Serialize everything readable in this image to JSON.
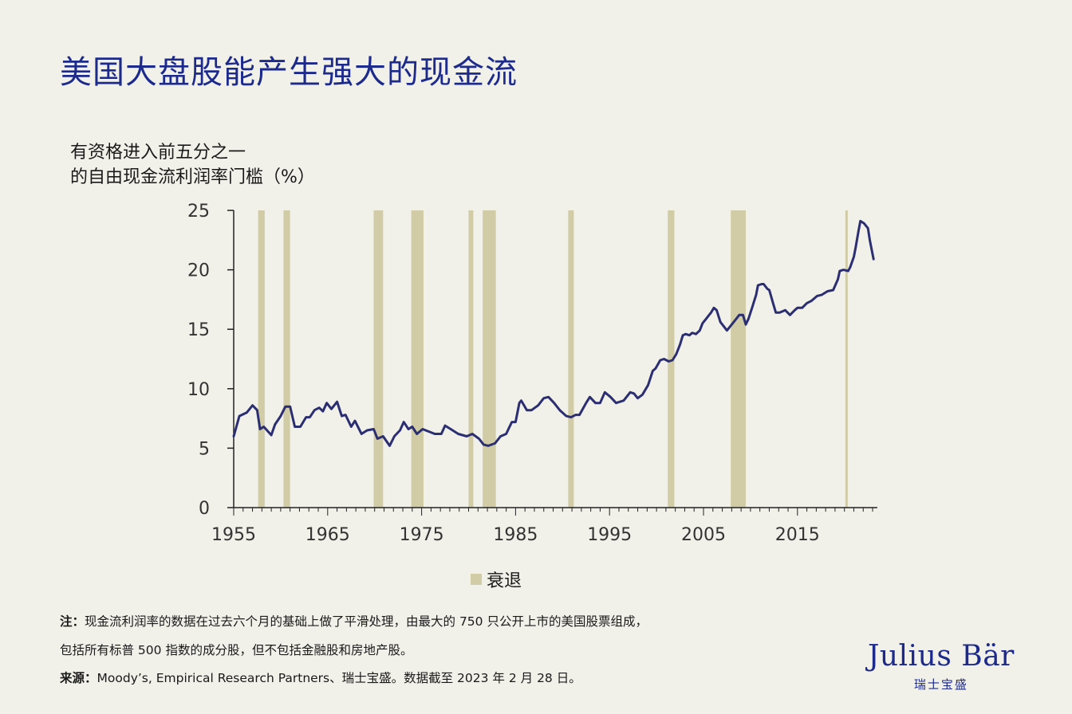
{
  "title": "美国大盘股能产生强大的现金流",
  "notes": {
    "note_label": "注：",
    "note_line1": "现金流利润率的数据在过去六个月的基础上做了平滑处理，由最大的 750 只公开上市的美国股票组成，",
    "note_line2": "包括所有标普 500 指数的成分股，但不包括金融股和房地产股。",
    "source_label": "来源：",
    "source_text": "Moody’s, Empirical Research Partners、瑞士宝盛。数据截至 2023 年 2 月 28 日。"
  },
  "logo": {
    "name": "Julius Bär",
    "sub": "瑞士宝盛"
  },
  "colors": {
    "background": "#f1f0e9",
    "title": "#1c2a8c",
    "line": "#2b2f72",
    "recession": "#d1cca5"
  },
  "chart_data": {
    "type": "line",
    "title": "",
    "ylabel_line1": "有资格进入前五分之一",
    "ylabel_line2": "的自由现金流利润率门槛（%）",
    "xlabel": "",
    "xlim": [
      1955,
      2023.5
    ],
    "ylim": [
      0,
      25
    ],
    "x_ticks": [
      1955,
      1965,
      1975,
      1985,
      1995,
      2005,
      2015
    ],
    "y_ticks": [
      0,
      5,
      10,
      15,
      20,
      25
    ],
    "grid": false,
    "legend": {
      "position": "bottom",
      "entries": [
        "衰退"
      ]
    },
    "recessions": [
      [
        1957.6,
        1958.3
      ],
      [
        1960.3,
        1961.0
      ],
      [
        1969.9,
        1970.9
      ],
      [
        1973.9,
        1975.2
      ],
      [
        1980.0,
        1980.5
      ],
      [
        1981.5,
        1982.9
      ],
      [
        1990.6,
        1991.2
      ],
      [
        2001.2,
        2001.9
      ],
      [
        2007.9,
        2009.5
      ],
      [
        2020.1,
        2020.3
      ]
    ],
    "series": [
      {
        "x": [
          1955.0,
          1955.6,
          1956.4,
          1957.0,
          1957.5,
          1957.8,
          1958.2,
          1959.0,
          1959.4,
          1960.0,
          1960.5,
          1961.0,
          1961.5,
          1962.1,
          1962.7,
          1963.1,
          1963.6,
          1964.1,
          1964.5,
          1964.9,
          1965.4,
          1966.0,
          1966.5,
          1966.9,
          1967.5,
          1967.9,
          1968.6,
          1969.2,
          1969.9,
          1970.3,
          1970.9,
          1971.6,
          1972.1,
          1972.7,
          1973.1,
          1973.6,
          1974.0,
          1974.5,
          1975.1,
          1976.4,
          1977.1,
          1977.5,
          1978.1,
          1978.9,
          1979.8,
          1980.4,
          1981.1,
          1981.6,
          1982.1,
          1982.8,
          1983.4,
          1984.0,
          1984.6,
          1985.0,
          1985.4,
          1985.6,
          1986.2,
          1986.7,
          1987.4,
          1988.0,
          1988.5,
          1989.1,
          1989.7,
          1990.4,
          1990.9,
          1991.4,
          1991.8,
          1992.5,
          1992.9,
          1993.5,
          1994.0,
          1994.5,
          1995.1,
          1995.7,
          1996.5,
          1997.2,
          1997.6,
          1998.0,
          1998.5,
          1999.1,
          1999.6,
          1999.9,
          2000.4,
          2000.8,
          2001.3,
          2001.7,
          2002.1,
          2002.5,
          2002.8,
          2003.1,
          2003.5,
          2003.8,
          2004.2,
          2004.6,
          2004.9,
          2005.3,
          2005.8,
          2006.1,
          2006.4,
          2006.8,
          2007.2,
          2007.5,
          2007.9,
          2008.3,
          2008.8,
          2009.2,
          2009.5,
          2009.8,
          2010.2,
          2010.6,
          2010.8,
          2011.2,
          2011.4,
          2011.8,
          2012.0,
          2012.4,
          2012.7,
          2013.1,
          2013.7,
          2014.2,
          2014.7,
          2015.0,
          2015.5,
          2016.0,
          2016.5,
          2017.1,
          2017.6,
          2018.2,
          2018.8,
          2019.3,
          2019.5,
          2019.9,
          2020.4,
          2020.6,
          2021.0,
          2021.2,
          2021.5,
          2021.7,
          2022.1,
          2022.5,
          2022.7,
          2023.1
        ],
        "y": [
          6.0,
          7.7,
          8.0,
          8.6,
          8.2,
          6.6,
          6.8,
          6.1,
          7.0,
          7.7,
          8.5,
          8.5,
          6.8,
          6.8,
          7.6,
          7.6,
          8.2,
          8.4,
          8.1,
          8.8,
          8.3,
          8.9,
          7.7,
          7.8,
          6.8,
          7.3,
          6.2,
          6.5,
          6.6,
          5.8,
          6.0,
          5.2,
          6.0,
          6.5,
          7.2,
          6.6,
          6.8,
          6.2,
          6.6,
          6.2,
          6.2,
          6.9,
          6.6,
          6.2,
          6.0,
          6.2,
          5.8,
          5.3,
          5.2,
          5.4,
          6.0,
          6.2,
          7.2,
          7.2,
          8.8,
          9.0,
          8.2,
          8.2,
          8.6,
          9.2,
          9.3,
          8.8,
          8.2,
          7.7,
          7.6,
          7.8,
          7.8,
          8.8,
          9.3,
          8.8,
          8.8,
          9.7,
          9.3,
          8.8,
          9.0,
          9.7,
          9.6,
          9.2,
          9.5,
          10.3,
          11.5,
          11.7,
          12.4,
          12.5,
          12.3,
          12.4,
          12.9,
          13.7,
          14.5,
          14.6,
          14.5,
          14.7,
          14.6,
          14.9,
          15.5,
          15.9,
          16.4,
          16.8,
          16.6,
          15.6,
          15.2,
          14.9,
          15.3,
          15.7,
          16.2,
          16.2,
          15.4,
          15.9,
          16.9,
          17.9,
          18.7,
          18.8,
          18.8,
          18.4,
          18.3,
          17.2,
          16.4,
          16.4,
          16.6,
          16.2,
          16.6,
          16.8,
          16.8,
          17.2,
          17.4,
          17.8,
          17.9,
          18.2,
          18.3,
          19.2,
          19.9,
          20.0,
          19.9,
          20.2,
          21.1,
          21.9,
          23.3,
          24.1,
          23.9,
          23.5,
          22.5,
          20.9
        ]
      }
    ]
  }
}
